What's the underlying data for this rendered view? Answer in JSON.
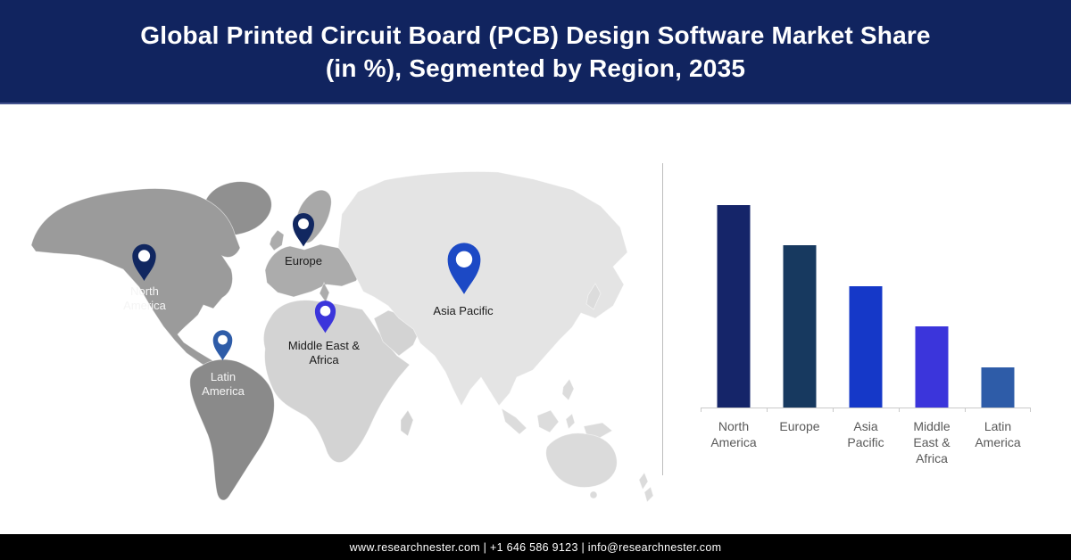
{
  "header": {
    "title": "Global Printed Circuit Board (PCB) Design Software Market Share\n(in %), Segmented by Region, 2035",
    "bg_color": "#11245F",
    "text_color": "#FFFFFF"
  },
  "map": {
    "regions": [
      {
        "id": "north-america",
        "label": "North America",
        "pin_color": "#112760",
        "label_theme": "light"
      },
      {
        "id": "europe",
        "label": "Europe",
        "pin_color": "#112760",
        "label_theme": "dark"
      },
      {
        "id": "asia-pacific",
        "label": "Asia Pacific",
        "pin_color": "#1C49C5",
        "label_theme": "dark"
      },
      {
        "id": "middle-east-africa",
        "label": "Middle East & Africa",
        "pin_color": "#3B35DB",
        "label_theme": "dark"
      },
      {
        "id": "latin-america",
        "label": "Latin America",
        "pin_color": "#2E5CA8",
        "label_theme": "light"
      }
    ]
  },
  "chart_data": {
    "type": "bar",
    "title": "Global Printed Circuit Board (PCB) Design Software Market Share (in %), Segmented by Region, 2035",
    "categories": [
      "North America",
      "Europe",
      "Asia Pacific",
      "Middle East & Africa",
      "Latin America"
    ],
    "values": [
      100,
      80,
      60,
      40,
      20
    ],
    "value_note": "relative bar heights (5:4:3:2:1); numeric value axis not shown in figure",
    "series_colors": [
      "#152569",
      "#17395F",
      "#1538C8",
      "#3B35DB",
      "#2E5CA8"
    ],
    "xlabel": "",
    "ylabel": "",
    "ylim": [
      0,
      100
    ],
    "grid": false,
    "legend": false
  },
  "footer": {
    "text": "www.researchnester.com | +1 646 586 9123 | info@researchnester.com",
    "website": "www.researchnester.com",
    "phone": "+1 646 586 9123",
    "email": "info@researchnester.com"
  }
}
